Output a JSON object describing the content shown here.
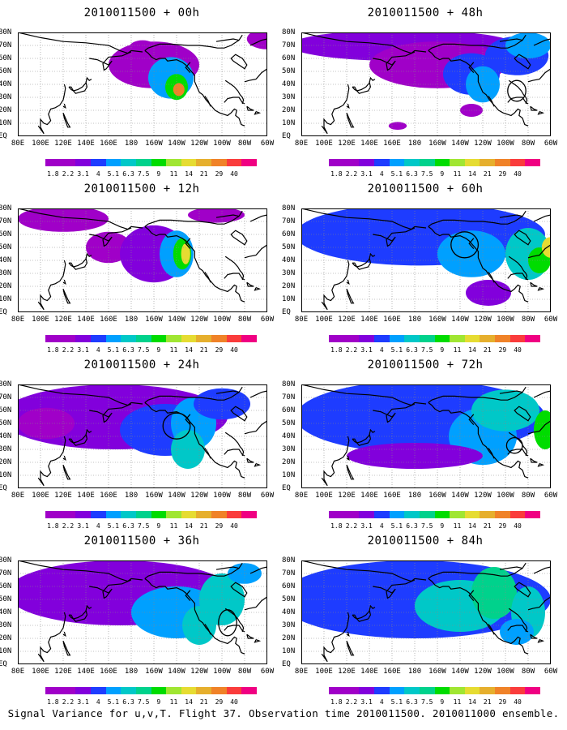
{
  "caption": "Signal Variance for u,v,T. Flight 37. Observation time 2010011500. 2010011000 ensemble.",
  "chart_data": {
    "type": "heatmap",
    "panels": [
      {
        "title": "2010011500 + 00h",
        "lead_hours": 0
      },
      {
        "title": "2010011500 + 48h",
        "lead_hours": 48
      },
      {
        "title": "2010011500 + 12h",
        "lead_hours": 12
      },
      {
        "title": "2010011500 + 60h",
        "lead_hours": 60
      },
      {
        "title": "2010011500 + 24h",
        "lead_hours": 24
      },
      {
        "title": "2010011500 + 72h",
        "lead_hours": 72
      },
      {
        "title": "2010011500 + 36h",
        "lead_hours": 36
      },
      {
        "title": "2010011500 + 84h",
        "lead_hours": 84
      }
    ],
    "x_ticks": [
      "80E",
      "100E",
      "120E",
      "140E",
      "160E",
      "180",
      "160W",
      "140W",
      "120W",
      "100W",
      "80W",
      "60W"
    ],
    "y_ticks": [
      "80N",
      "70N",
      "60N",
      "50N",
      "40N",
      "30N",
      "20N",
      "10N",
      "EQ"
    ],
    "xlim": [
      "80E",
      "60W"
    ],
    "ylim": [
      "EQ",
      "80N"
    ],
    "grid": true,
    "colorbar": {
      "levels": [
        "1.8",
        "2.2",
        "3.1",
        "4",
        "5.1",
        "6.3",
        "7.5",
        "9",
        "11",
        "14",
        "21",
        "29",
        "40"
      ],
      "colors": [
        "#a000c8",
        "#8200dc",
        "#1e3cff",
        "#00a0ff",
        "#00c8c8",
        "#00d28c",
        "#00dc00",
        "#a0e632",
        "#e6dc32",
        "#e6af2d",
        "#f08228",
        "#fa3c3c",
        "#f00082"
      ]
    }
  }
}
